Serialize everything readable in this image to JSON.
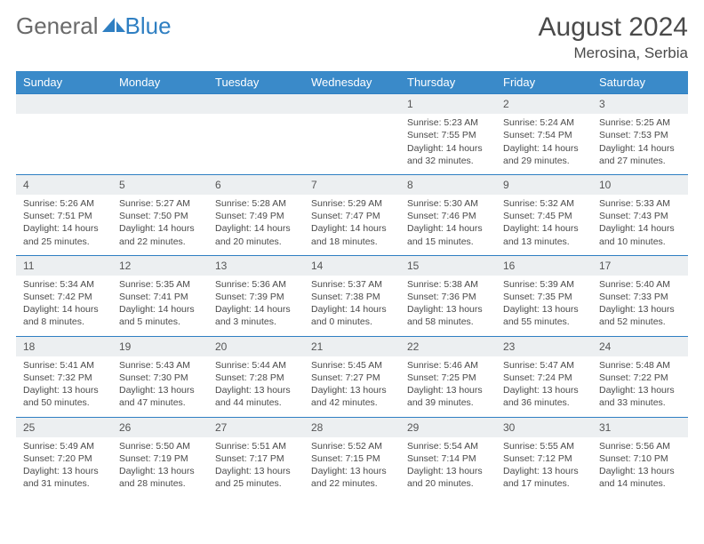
{
  "brand": {
    "word1": "General",
    "word2": "Blue"
  },
  "title": "August 2024",
  "location": "Merosina, Serbia",
  "colors": {
    "header_bg": "#3a8ac9",
    "header_text": "#ffffff",
    "daynum_bg": "#eceff1",
    "day_border": "#2f7fc2",
    "body_text": "#4a4a4a",
    "logo_gray": "#6a6a6a",
    "logo_blue": "#2f7fc2"
  },
  "day_names": [
    "Sunday",
    "Monday",
    "Tuesday",
    "Wednesday",
    "Thursday",
    "Friday",
    "Saturday"
  ],
  "weeks": [
    [
      null,
      null,
      null,
      null,
      {
        "n": "1",
        "sr": "5:23 AM",
        "ss": "7:55 PM",
        "dl": "14 hours and 32 minutes."
      },
      {
        "n": "2",
        "sr": "5:24 AM",
        "ss": "7:54 PM",
        "dl": "14 hours and 29 minutes."
      },
      {
        "n": "3",
        "sr": "5:25 AM",
        "ss": "7:53 PM",
        "dl": "14 hours and 27 minutes."
      }
    ],
    [
      {
        "n": "4",
        "sr": "5:26 AM",
        "ss": "7:51 PM",
        "dl": "14 hours and 25 minutes."
      },
      {
        "n": "5",
        "sr": "5:27 AM",
        "ss": "7:50 PM",
        "dl": "14 hours and 22 minutes."
      },
      {
        "n": "6",
        "sr": "5:28 AM",
        "ss": "7:49 PM",
        "dl": "14 hours and 20 minutes."
      },
      {
        "n": "7",
        "sr": "5:29 AM",
        "ss": "7:47 PM",
        "dl": "14 hours and 18 minutes."
      },
      {
        "n": "8",
        "sr": "5:30 AM",
        "ss": "7:46 PM",
        "dl": "14 hours and 15 minutes."
      },
      {
        "n": "9",
        "sr": "5:32 AM",
        "ss": "7:45 PM",
        "dl": "14 hours and 13 minutes."
      },
      {
        "n": "10",
        "sr": "5:33 AM",
        "ss": "7:43 PM",
        "dl": "14 hours and 10 minutes."
      }
    ],
    [
      {
        "n": "11",
        "sr": "5:34 AM",
        "ss": "7:42 PM",
        "dl": "14 hours and 8 minutes."
      },
      {
        "n": "12",
        "sr": "5:35 AM",
        "ss": "7:41 PM",
        "dl": "14 hours and 5 minutes."
      },
      {
        "n": "13",
        "sr": "5:36 AM",
        "ss": "7:39 PM",
        "dl": "14 hours and 3 minutes."
      },
      {
        "n": "14",
        "sr": "5:37 AM",
        "ss": "7:38 PM",
        "dl": "14 hours and 0 minutes."
      },
      {
        "n": "15",
        "sr": "5:38 AM",
        "ss": "7:36 PM",
        "dl": "13 hours and 58 minutes."
      },
      {
        "n": "16",
        "sr": "5:39 AM",
        "ss": "7:35 PM",
        "dl": "13 hours and 55 minutes."
      },
      {
        "n": "17",
        "sr": "5:40 AM",
        "ss": "7:33 PM",
        "dl": "13 hours and 52 minutes."
      }
    ],
    [
      {
        "n": "18",
        "sr": "5:41 AM",
        "ss": "7:32 PM",
        "dl": "13 hours and 50 minutes."
      },
      {
        "n": "19",
        "sr": "5:43 AM",
        "ss": "7:30 PM",
        "dl": "13 hours and 47 minutes."
      },
      {
        "n": "20",
        "sr": "5:44 AM",
        "ss": "7:28 PM",
        "dl": "13 hours and 44 minutes."
      },
      {
        "n": "21",
        "sr": "5:45 AM",
        "ss": "7:27 PM",
        "dl": "13 hours and 42 minutes."
      },
      {
        "n": "22",
        "sr": "5:46 AM",
        "ss": "7:25 PM",
        "dl": "13 hours and 39 minutes."
      },
      {
        "n": "23",
        "sr": "5:47 AM",
        "ss": "7:24 PM",
        "dl": "13 hours and 36 minutes."
      },
      {
        "n": "24",
        "sr": "5:48 AM",
        "ss": "7:22 PM",
        "dl": "13 hours and 33 minutes."
      }
    ],
    [
      {
        "n": "25",
        "sr": "5:49 AM",
        "ss": "7:20 PM",
        "dl": "13 hours and 31 minutes."
      },
      {
        "n": "26",
        "sr": "5:50 AM",
        "ss": "7:19 PM",
        "dl": "13 hours and 28 minutes."
      },
      {
        "n": "27",
        "sr": "5:51 AM",
        "ss": "7:17 PM",
        "dl": "13 hours and 25 minutes."
      },
      {
        "n": "28",
        "sr": "5:52 AM",
        "ss": "7:15 PM",
        "dl": "13 hours and 22 minutes."
      },
      {
        "n": "29",
        "sr": "5:54 AM",
        "ss": "7:14 PM",
        "dl": "13 hours and 20 minutes."
      },
      {
        "n": "30",
        "sr": "5:55 AM",
        "ss": "7:12 PM",
        "dl": "13 hours and 17 minutes."
      },
      {
        "n": "31",
        "sr": "5:56 AM",
        "ss": "7:10 PM",
        "dl": "13 hours and 14 minutes."
      }
    ]
  ],
  "labels": {
    "sunrise": "Sunrise:",
    "sunset": "Sunset:",
    "daylight": "Daylight:"
  }
}
